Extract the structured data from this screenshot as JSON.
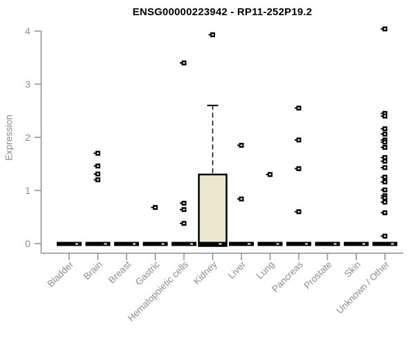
{
  "chart_data": {
    "type": "boxplot",
    "title": "ENSG00000223942 - RP11-252P19.2",
    "ylabel": "Expression",
    "ylim": [
      0,
      4
    ],
    "yticks": [
      0,
      1,
      2,
      3,
      4
    ],
    "categories": [
      "Bladder",
      "Brain",
      "Breast",
      "Gastric",
      "Hematopoietic cells",
      "Kidney",
      "Liver",
      "Lung",
      "Pancreas",
      "Prostate",
      "Skin",
      "Unknown / Other"
    ],
    "series": [
      {
        "name": "Bladder",
        "median": 0,
        "outliers": []
      },
      {
        "name": "Brain",
        "median": 0,
        "outliers": [
          1.7,
          1.46,
          1.31,
          1.2
        ]
      },
      {
        "name": "Breast",
        "median": 0,
        "outliers": []
      },
      {
        "name": "Gastric",
        "median": 0,
        "outliers": [
          0.68
        ]
      },
      {
        "name": "Hematopoietic cells",
        "median": 0,
        "outliers": [
          3.4,
          0.76,
          0.64,
          0.38
        ]
      },
      {
        "name": "Kidney",
        "median": 0,
        "box": {
          "q1": 0,
          "q3": 1.3,
          "upper_whisker": 2.6
        },
        "outliers": [
          3.93
        ]
      },
      {
        "name": "Liver",
        "median": 0,
        "outliers": [
          1.85,
          0.84
        ]
      },
      {
        "name": "Lung",
        "median": 0,
        "outliers": [
          1.3
        ]
      },
      {
        "name": "Pancreas",
        "median": 0,
        "outliers": [
          2.55,
          1.95,
          1.41,
          0.6
        ]
      },
      {
        "name": "Prostate",
        "median": 0,
        "outliers": []
      },
      {
        "name": "Skin",
        "median": 0,
        "outliers": []
      },
      {
        "name": "Unknown / Other",
        "median": 0,
        "outliers": [
          4.04,
          2.45,
          2.4,
          2.16,
          2.06,
          1.95,
          1.91,
          1.81,
          1.62,
          1.55,
          1.43,
          1.25,
          1.16,
          1.01,
          0.9,
          0.86,
          0.78,
          0.58,
          0.14
        ]
      }
    ],
    "colors": {
      "box_fill": "#ece7cf",
      "marker": "#000000",
      "axis": "#8c8c8c",
      "title": "#000000"
    },
    "layout": {
      "legend": false,
      "grid": false,
      "x_label_rotation": 45,
      "baseline_bar_at_zero": true
    }
  }
}
